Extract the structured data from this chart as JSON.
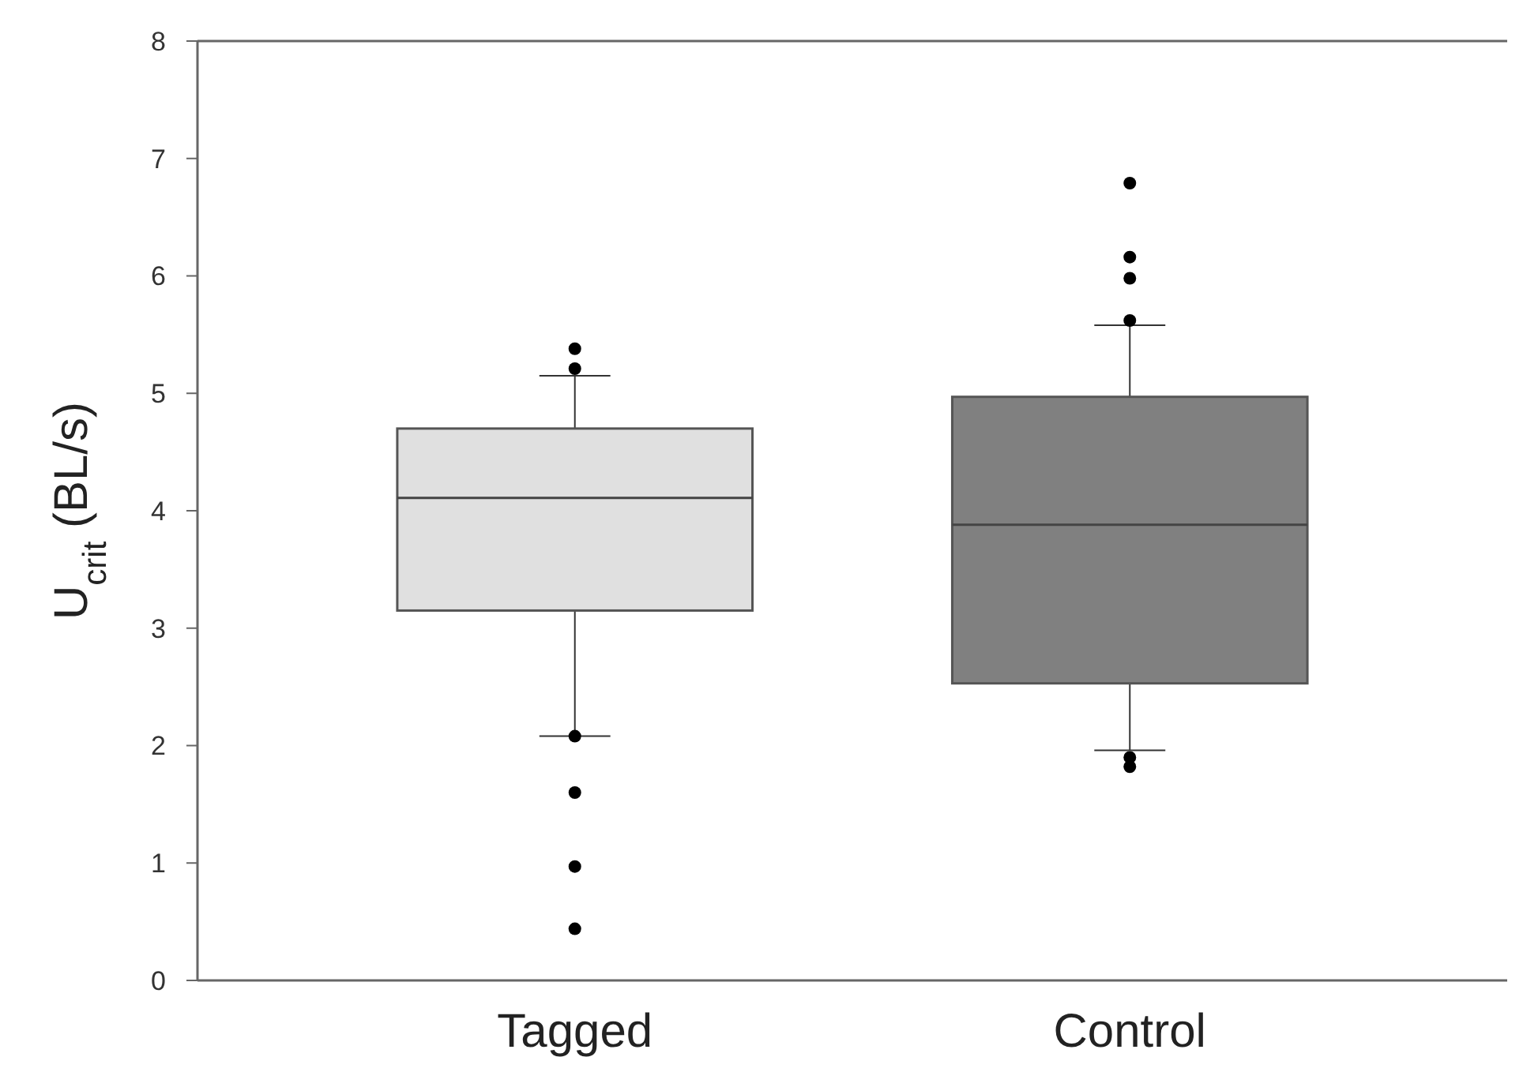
{
  "chart_data": {
    "type": "box",
    "ylabel": "U$_{crit}$ (BL/s)",
    "categories": [
      "Tagged",
      "Control"
    ],
    "colors": [
      "#e0e0e0",
      "#808080"
    ],
    "ylim": [
      0,
      8
    ],
    "yticks": [
      0,
      1,
      2,
      3,
      4,
      5,
      6,
      7,
      8
    ],
    "grid": false,
    "boxes": [
      {
        "low": 2.08,
        "q1": 3.15,
        "median": 4.11,
        "q3": 4.7,
        "high": 5.15,
        "outliers": [
          5.38,
          5.21,
          2.08,
          1.6,
          0.97,
          0.44
        ]
      },
      {
        "low": 1.96,
        "q1": 2.53,
        "median": 3.88,
        "q3": 4.97,
        "high": 5.58,
        "outliers": [
          6.79,
          6.16,
          5.98,
          5.62,
          1.9,
          1.82
        ]
      }
    ]
  }
}
